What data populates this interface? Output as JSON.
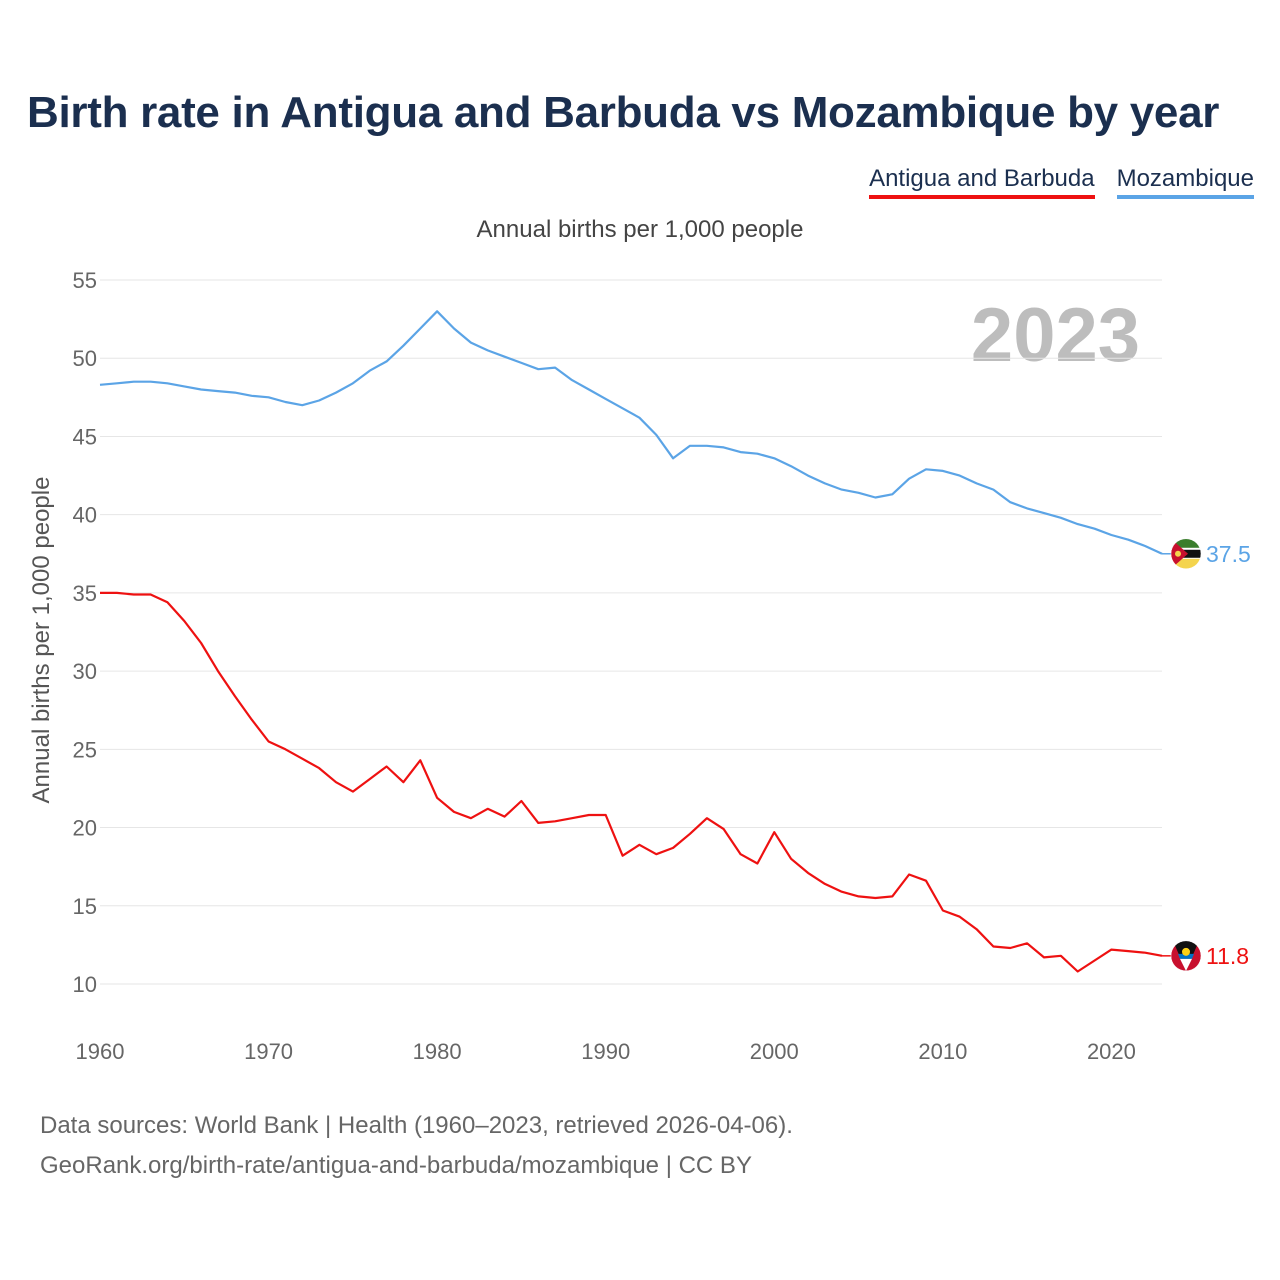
{
  "title": "Birth rate in Antigua and Barbuda vs Mozambique by year",
  "legend": {
    "antigua": "Antigua and Barbuda",
    "mozambique": "Mozambique"
  },
  "watermark_year": "2023",
  "footer": {
    "line1": "Data sources: World Bank | Health (1960–2023, retrieved 2026-04-06).",
    "line2": "GeoRank.org/birth-rate/antigua-and-barbuda/mozambique | CC BY"
  },
  "chart_data": {
    "type": "line",
    "title": "Birth rate in Antigua and Barbuda vs Mozambique by year",
    "subtitle": "Annual births per 1,000 people",
    "xlabel": "",
    "ylabel": "Annual births per 1,000 people",
    "xlim": [
      1960,
      2023
    ],
    "ylim": [
      10,
      55
    ],
    "grid": true,
    "legend_position": "top-right",
    "xticks": [
      1960,
      1970,
      1980,
      1990,
      2000,
      2010,
      2020
    ],
    "yticks": [
      10,
      15,
      20,
      25,
      30,
      35,
      40,
      45,
      50,
      55
    ],
    "x": [
      1960,
      1961,
      1962,
      1963,
      1964,
      1965,
      1966,
      1967,
      1968,
      1969,
      1970,
      1971,
      1972,
      1973,
      1974,
      1975,
      1976,
      1977,
      1978,
      1979,
      1980,
      1981,
      1982,
      1983,
      1984,
      1985,
      1986,
      1987,
      1988,
      1989,
      1990,
      1991,
      1992,
      1993,
      1994,
      1995,
      1996,
      1997,
      1998,
      1999,
      2000,
      2001,
      2002,
      2003,
      2004,
      2005,
      2006,
      2007,
      2008,
      2009,
      2010,
      2011,
      2012,
      2013,
      2014,
      2015,
      2016,
      2017,
      2018,
      2019,
      2020,
      2021,
      2022,
      2023
    ],
    "series": [
      {
        "name": "Antigua and Barbuda",
        "color": "#ee1111",
        "end_label": "11.8",
        "values": [
          35.0,
          35.0,
          34.9,
          34.9,
          34.4,
          33.2,
          31.8,
          30.0,
          28.4,
          26.9,
          25.5,
          25.0,
          24.4,
          23.8,
          22.9,
          22.3,
          23.1,
          23.9,
          22.9,
          24.3,
          21.9,
          21.0,
          20.6,
          21.2,
          20.7,
          21.7,
          20.3,
          20.4,
          20.6,
          20.8,
          20.8,
          18.2,
          18.9,
          18.3,
          18.7,
          19.6,
          20.6,
          19.9,
          18.3,
          17.7,
          19.7,
          18.0,
          17.1,
          16.4,
          15.9,
          15.6,
          15.5,
          15.6,
          17.0,
          16.6,
          14.7,
          14.3,
          13.5,
          12.4,
          12.3,
          12.6,
          11.7,
          11.8,
          10.8,
          11.5,
          12.2,
          12.1,
          12.0,
          11.8
        ]
      },
      {
        "name": "Mozambique",
        "color": "#5ba4e6",
        "end_label": "37.5",
        "values": [
          48.3,
          48.4,
          48.5,
          48.5,
          48.4,
          48.2,
          48.0,
          47.9,
          47.8,
          47.6,
          47.5,
          47.2,
          47.0,
          47.3,
          47.8,
          48.4,
          49.2,
          49.8,
          50.8,
          51.9,
          53.0,
          51.9,
          51.0,
          50.5,
          50.1,
          49.7,
          49.3,
          49.4,
          48.6,
          48.0,
          47.4,
          46.8,
          46.2,
          45.1,
          43.6,
          44.4,
          44.4,
          44.3,
          44.0,
          43.9,
          43.6,
          43.1,
          42.5,
          42.0,
          41.6,
          41.4,
          41.1,
          41.3,
          42.3,
          42.9,
          42.8,
          42.5,
          42.0,
          41.6,
          40.8,
          40.4,
          40.1,
          39.8,
          39.4,
          39.1,
          38.7,
          38.4,
          38.0,
          37.5
        ]
      }
    ]
  }
}
